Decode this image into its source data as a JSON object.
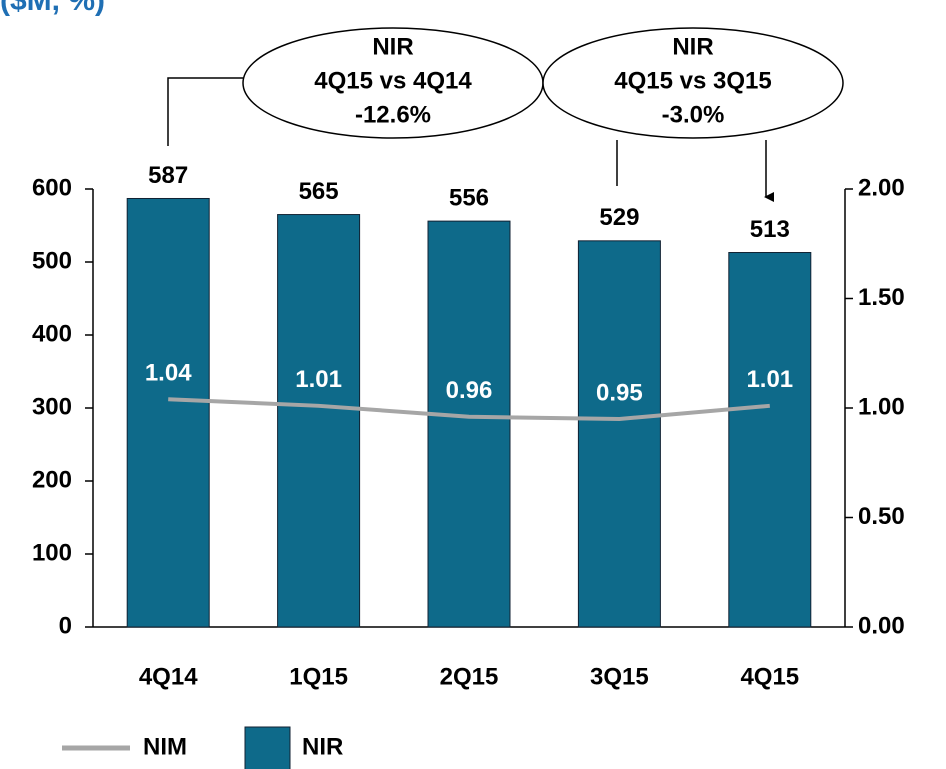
{
  "chart_data": {
    "type": "bar",
    "title": "($M, %)",
    "categories": [
      "4Q14",
      "1Q15",
      "2Q15",
      "3Q15",
      "4Q15"
    ],
    "series": [
      {
        "name": "NIR",
        "type": "bar",
        "color": "#0e6a8a",
        "values": [
          587,
          565,
          556,
          529,
          513
        ]
      },
      {
        "name": "NIM",
        "type": "line",
        "axis": "y2",
        "color": "#a6a6a6",
        "values": [
          1.04,
          1.01,
          0.96,
          0.95,
          1.01
        ]
      }
    ],
    "ylim": [
      0,
      600
    ],
    "yticks": [
      0,
      100,
      200,
      300,
      400,
      500,
      600
    ],
    "y2lim": [
      0,
      2
    ],
    "y2ticks": [
      {
        "value": 0,
        "label": "0.00"
      },
      {
        "value": 0.5,
        "label": "0.50"
      },
      {
        "value": 1,
        "label": "1.00"
      },
      {
        "value": 1.5,
        "label": "1.50"
      },
      {
        "value": 2,
        "label": "2.00"
      }
    ],
    "annotations": [
      {
        "lines": [
          "NIR",
          "4Q15 vs 4Q14",
          "-12.6%"
        ]
      },
      {
        "lines": [
          "NIR",
          "4Q15 vs 3Q15",
          "-3.0%"
        ]
      }
    ],
    "legend": "bottom"
  }
}
